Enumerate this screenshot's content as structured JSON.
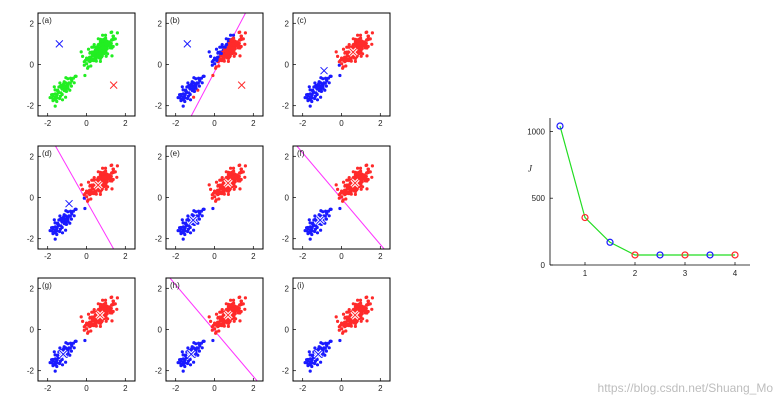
{
  "chart_data": [
    {
      "type": "scatter",
      "panels": [
        {
          "label": "(a)",
          "point_color": "green",
          "centroids": [
            {
              "x": -1.4,
              "y": 1.0,
              "color": "blue"
            },
            {
              "x": 1.4,
              "y": -1.0,
              "color": "red"
            }
          ],
          "boundary": null
        },
        {
          "label": "(b)",
          "point_color": "assigned",
          "centroids": [
            {
              "x": -1.4,
              "y": 1.0,
              "color": "blue"
            },
            {
              "x": 1.4,
              "y": -1.0,
              "color": "red"
            }
          ],
          "boundary": {
            "x1": -1.2,
            "y1": -2.5,
            "x2": 1.6,
            "y2": 2.5
          }
        },
        {
          "label": "(c)",
          "point_color": "assigned",
          "centroids": [
            {
              "x": -0.9,
              "y": -0.3,
              "color": "blue"
            },
            {
              "x": 0.6,
              "y": 0.6,
              "color": "red"
            }
          ],
          "boundary": null
        },
        {
          "label": "(d)",
          "point_color": "assigned",
          "centroids": [
            {
              "x": -0.9,
              "y": -0.3,
              "color": "blue"
            },
            {
              "x": 0.6,
              "y": 0.6,
              "color": "red"
            }
          ],
          "boundary": {
            "x1": -1.6,
            "y1": 2.5,
            "x2": 1.4,
            "y2": -2.5
          }
        },
        {
          "label": "(e)",
          "point_color": "assigned",
          "centroids": [
            {
              "x": -1.1,
              "y": -1.1,
              "color": "blue"
            },
            {
              "x": 0.7,
              "y": 0.7,
              "color": "red"
            }
          ],
          "boundary": null
        },
        {
          "label": "(f)",
          "point_color": "assigned",
          "centroids": [
            {
              "x": -1.1,
              "y": -1.1,
              "color": "blue"
            },
            {
              "x": 0.7,
              "y": 0.7,
              "color": "red"
            }
          ],
          "boundary": {
            "x1": -2.3,
            "y1": 2.5,
            "x2": 2.2,
            "y2": -2.5
          }
        },
        {
          "label": "(g)",
          "point_color": "assigned",
          "centroids": [
            {
              "x": -1.2,
              "y": -1.2,
              "color": "blue"
            },
            {
              "x": 0.7,
              "y": 0.7,
              "color": "red"
            }
          ],
          "boundary": null
        },
        {
          "label": "(h)",
          "point_color": "assigned",
          "centroids": [
            {
              "x": -1.2,
              "y": -1.2,
              "color": "blue"
            },
            {
              "x": 0.7,
              "y": 0.7,
              "color": "red"
            }
          ],
          "boundary": {
            "x1": -2.3,
            "y1": 2.5,
            "x2": 2.2,
            "y2": -2.5
          }
        },
        {
          "label": "(i)",
          "point_color": "assigned",
          "centroids": [
            {
              "x": -1.2,
              "y": -1.2,
              "color": "blue"
            },
            {
              "x": 0.7,
              "y": 0.7,
              "color": "red"
            }
          ],
          "boundary": null
        }
      ],
      "xlim": [
        -2.5,
        2.5
      ],
      "ylim": [
        -2.5,
        2.5
      ],
      "x_ticks": [
        "-2",
        "0",
        "2"
      ],
      "y_ticks": [
        "-2",
        "0",
        "2"
      ],
      "clusters": [
        {
          "name": "blue",
          "center": [
            -1.2,
            -1.2
          ],
          "spread": 0.35,
          "count": 70,
          "color": "#1a1aff"
        },
        {
          "name": "red",
          "center": [
            0.7,
            0.7
          ],
          "spread": 0.38,
          "count": 200,
          "color": "#ff2a2a"
        }
      ],
      "colors": {
        "green": "#22ee22",
        "blue": "#1a1aff",
        "red": "#ff2a2a",
        "boundary": "#ff33ff",
        "centroid_fill": "#ffffff"
      }
    },
    {
      "type": "line",
      "ylabel": "J",
      "x": [
        0.5,
        1,
        1.5,
        2,
        2.5,
        3,
        3.5,
        4
      ],
      "y": [
        1040,
        355,
        170,
        75,
        75,
        75,
        75,
        75
      ],
      "marker_colors": [
        "blue",
        "red",
        "blue",
        "red",
        "blue",
        "red",
        "blue",
        "red"
      ],
      "xlim": [
        0.3,
        4.3
      ],
      "ylim": [
        0,
        1100
      ],
      "x_ticks": [
        "1",
        "2",
        "3",
        "4"
      ],
      "y_ticks": [
        "0",
        "500",
        "1000"
      ],
      "line_color": "#22dd22"
    }
  ],
  "watermark": "https://blog.csdn.net/Shuang_Mo"
}
